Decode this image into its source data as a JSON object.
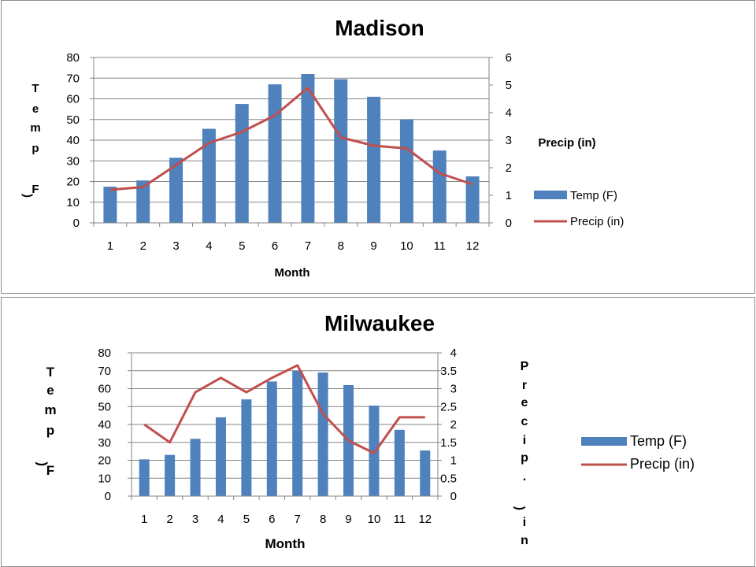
{
  "chart_data": [
    {
      "type": "bar",
      "title": "Madison",
      "xlabel": "Month",
      "ylabel": "Temp (F)",
      "y2label": "Precip (in)",
      "categories": [
        "1",
        "2",
        "3",
        "4",
        "5",
        "6",
        "7",
        "8",
        "9",
        "10",
        "11",
        "12"
      ],
      "ylim": [
        0,
        80
      ],
      "yticks": [
        "0",
        "10",
        "20",
        "30",
        "40",
        "50",
        "60",
        "70",
        "80"
      ],
      "y2lim": [
        0,
        6
      ],
      "y2ticks": [
        "0",
        "1",
        "2",
        "3",
        "4",
        "5",
        "6"
      ],
      "grid": true,
      "legend_position": "right",
      "series": [
        {
          "name": "Temp (F)",
          "type": "bar",
          "axis": "left",
          "color": "#4F81BD",
          "values": [
            17.5,
            20.5,
            31.5,
            45.5,
            57.5,
            67,
            72,
            69.5,
            61,
            50,
            35,
            22.5
          ]
        },
        {
          "name": "Precip (in)",
          "type": "line",
          "axis": "right",
          "color": "#C0504D",
          "values": [
            1.2,
            1.3,
            2.1,
            2.9,
            3.3,
            3.9,
            4.9,
            3.1,
            2.8,
            2.7,
            1.8,
            1.4
          ]
        }
      ]
    },
    {
      "type": "bar",
      "title": "Milwaukee",
      "xlabel": "Month",
      "ylabel": "Temp (F)",
      "y2label": "Precip. (in)",
      "categories": [
        "1",
        "2",
        "3",
        "4",
        "5",
        "6",
        "7",
        "8",
        "9",
        "10",
        "11",
        "12"
      ],
      "ylim": [
        0,
        80
      ],
      "yticks": [
        "0",
        "10",
        "20",
        "30",
        "40",
        "50",
        "60",
        "70",
        "80"
      ],
      "y2lim": [
        0,
        4
      ],
      "y2ticks": [
        "0",
        "0.5",
        "1",
        "1.5",
        "2",
        "2.5",
        "3",
        "3.5",
        "4"
      ],
      "grid": true,
      "legend_position": "right",
      "series": [
        {
          "name": "Temp (F)",
          "type": "bar",
          "axis": "left",
          "color": "#4F81BD",
          "values": [
            20.5,
            23,
            32,
            44,
            54,
            64,
            70,
            69,
            62,
            50.5,
            37,
            25.5
          ]
        },
        {
          "name": "Precip (in)",
          "type": "line",
          "axis": "right",
          "color": "#C0504D",
          "values": [
            2,
            1.5,
            2.9,
            3.3,
            2.9,
            3.3,
            3.65,
            2.3,
            1.55,
            1.2,
            2.2,
            2.2
          ]
        }
      ]
    }
  ]
}
